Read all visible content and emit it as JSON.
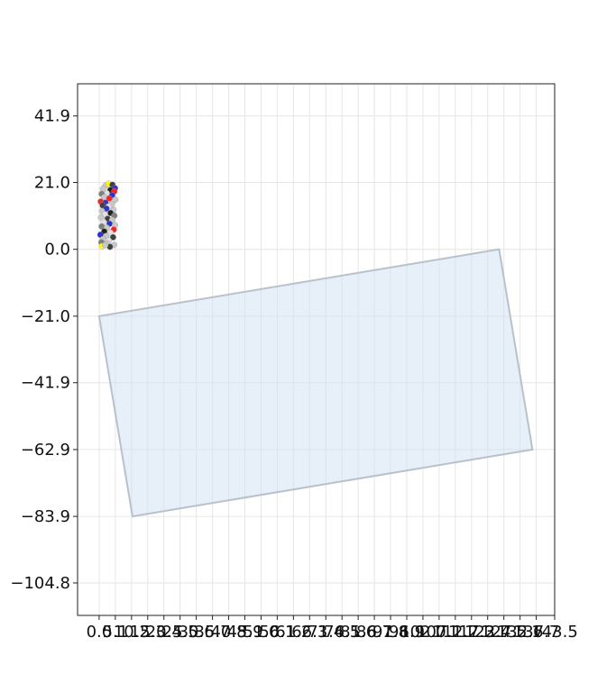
{
  "chart_data": {
    "type": "scatter",
    "title": "",
    "xlabel": "",
    "ylabel": "",
    "xlim": [
      -6.8,
      143.5
    ],
    "ylim": [
      -115.0,
      52.0
    ],
    "grid": true,
    "legend": "none",
    "x_ticks": [
      {
        "value": 0.0,
        "label": "0.0"
      },
      {
        "value": 5.1,
        "label": "5.1"
      },
      {
        "value": 10.2,
        "label": "10.2"
      },
      {
        "value": 15.3,
        "label": "15.3"
      },
      {
        "value": 20.4,
        "label": "20.4"
      },
      {
        "value": 25.5,
        "label": "25.5"
      },
      {
        "value": 30.6,
        "label": "30.6"
      },
      {
        "value": 35.7,
        "label": "35.7"
      },
      {
        "value": 40.8,
        "label": "40.8"
      },
      {
        "value": 45.9,
        "label": "45.9"
      },
      {
        "value": 51.0,
        "label": "51.0"
      },
      {
        "value": 56.1,
        "label": "56.1"
      },
      {
        "value": 61.2,
        "label": "61.2"
      },
      {
        "value": 66.3,
        "label": "66.3"
      },
      {
        "value": 71.4,
        "label": "71.4"
      },
      {
        "value": 76.5,
        "label": "76.5"
      },
      {
        "value": 81.6,
        "label": "81.6"
      },
      {
        "value": 86.7,
        "label": "86.7"
      },
      {
        "value": 91.8,
        "label": "91.8"
      },
      {
        "value": 96.9,
        "label": "96.9"
      },
      {
        "value": 102.0,
        "label": "102.0"
      },
      {
        "value": 107.1,
        "label": "107.1"
      },
      {
        "value": 112.2,
        "label": "112.2"
      },
      {
        "value": 117.3,
        "label": "117.3"
      },
      {
        "value": 122.4,
        "label": "122.4"
      },
      {
        "value": 127.5,
        "label": "127.5"
      },
      {
        "value": 132.6,
        "label": "132.6"
      },
      {
        "value": 137.7,
        "label": "137.7"
      },
      {
        "value": 143.5,
        "label": "143.5"
      }
    ],
    "y_ticks": [
      {
        "value": 41.9,
        "label": "41.9"
      },
      {
        "value": 21.0,
        "label": "21.0"
      },
      {
        "value": 0.0,
        "label": "0.0"
      },
      {
        "value": -21.0,
        "label": "−21.0"
      },
      {
        "value": -41.9,
        "label": "−41.9"
      },
      {
        "value": -62.9,
        "label": "−62.9"
      },
      {
        "value": -83.9,
        "label": "−83.9"
      },
      {
        "value": -104.8,
        "label": "−104.8"
      }
    ],
    "cell_polygon": {
      "points": [
        [
          0.0,
          -21.0
        ],
        [
          126.0,
          0.0
        ],
        [
          136.5,
          -62.9
        ],
        [
          10.5,
          -83.9
        ]
      ],
      "fill": "#cfe0f1",
      "stroke": "#b7c2cc"
    },
    "points": [
      {
        "x": 2.0,
        "y": 20.0,
        "color": "#c8c8c8"
      },
      {
        "x": 3.0,
        "y": 20.6,
        "color": "#ffff00"
      },
      {
        "x": 4.2,
        "y": 20.3,
        "color": "#404040"
      },
      {
        "x": 5.0,
        "y": 19.2,
        "color": "#3030d0"
      },
      {
        "x": 1.2,
        "y": 19.0,
        "color": "#c8c8c8"
      },
      {
        "x": 3.5,
        "y": 18.6,
        "color": "#202020"
      },
      {
        "x": 4.8,
        "y": 18.2,
        "color": "#ff2020"
      },
      {
        "x": 2.4,
        "y": 17.6,
        "color": "#e0e0e0"
      },
      {
        "x": 0.8,
        "y": 17.4,
        "color": "#808080"
      },
      {
        "x": 4.1,
        "y": 17.0,
        "color": "#3030d0"
      },
      {
        "x": 1.6,
        "y": 16.4,
        "color": "#c8c8c8"
      },
      {
        "x": 3.2,
        "y": 16.0,
        "color": "#ff2020"
      },
      {
        "x": 5.1,
        "y": 15.6,
        "color": "#c8c8c8"
      },
      {
        "x": 0.5,
        "y": 15.0,
        "color": "#ff2020"
      },
      {
        "x": 2.0,
        "y": 14.6,
        "color": "#3030d0"
      },
      {
        "x": 4.0,
        "y": 14.3,
        "color": "#c8c8c8"
      },
      {
        "x": 1.1,
        "y": 13.8,
        "color": "#404040"
      },
      {
        "x": 3.0,
        "y": 13.5,
        "color": "#e0e0e0"
      },
      {
        "x": 2.3,
        "y": 12.8,
        "color": "#3030d0"
      },
      {
        "x": 4.5,
        "y": 12.4,
        "color": "#c8c8c8"
      },
      {
        "x": 0.9,
        "y": 12.0,
        "color": "#c8c8c8"
      },
      {
        "x": 3.6,
        "y": 11.4,
        "color": "#202020"
      },
      {
        "x": 1.8,
        "y": 11.0,
        "color": "#e0e0e0"
      },
      {
        "x": 4.8,
        "y": 10.6,
        "color": "#808080"
      },
      {
        "x": 0.6,
        "y": 10.0,
        "color": "#c8c8c8"
      },
      {
        "x": 2.7,
        "y": 9.6,
        "color": "#404040"
      },
      {
        "x": 4.1,
        "y": 9.2,
        "color": "#c8c8c8"
      },
      {
        "x": 1.4,
        "y": 8.6,
        "color": "#e0e0e0"
      },
      {
        "x": 3.3,
        "y": 8.0,
        "color": "#3030d0"
      },
      {
        "x": 5.0,
        "y": 7.6,
        "color": "#c8c8c8"
      },
      {
        "x": 0.8,
        "y": 7.2,
        "color": "#808080"
      },
      {
        "x": 2.4,
        "y": 6.8,
        "color": "#c8c8c8"
      },
      {
        "x": 4.6,
        "y": 6.2,
        "color": "#ff2020"
      },
      {
        "x": 1.6,
        "y": 5.6,
        "color": "#202020"
      },
      {
        "x": 3.6,
        "y": 5.2,
        "color": "#e0e0e0"
      },
      {
        "x": 0.4,
        "y": 4.6,
        "color": "#3030d0"
      },
      {
        "x": 2.2,
        "y": 4.2,
        "color": "#c8c8c8"
      },
      {
        "x": 4.4,
        "y": 3.8,
        "color": "#404040"
      },
      {
        "x": 1.2,
        "y": 3.2,
        "color": "#c8c8c8"
      },
      {
        "x": 3.0,
        "y": 2.8,
        "color": "#e0e0e0"
      },
      {
        "x": 0.7,
        "y": 2.2,
        "color": "#808080"
      },
      {
        "x": 2.6,
        "y": 1.8,
        "color": "#c8c8c8"
      },
      {
        "x": 4.7,
        "y": 1.4,
        "color": "#c8c8c8"
      },
      {
        "x": 0.9,
        "y": 1.0,
        "color": "#ffff00"
      },
      {
        "x": 3.4,
        "y": 0.8,
        "color": "#404040"
      },
      {
        "x": 1.9,
        "y": 1.3,
        "color": "#c8c8c8"
      }
    ]
  }
}
